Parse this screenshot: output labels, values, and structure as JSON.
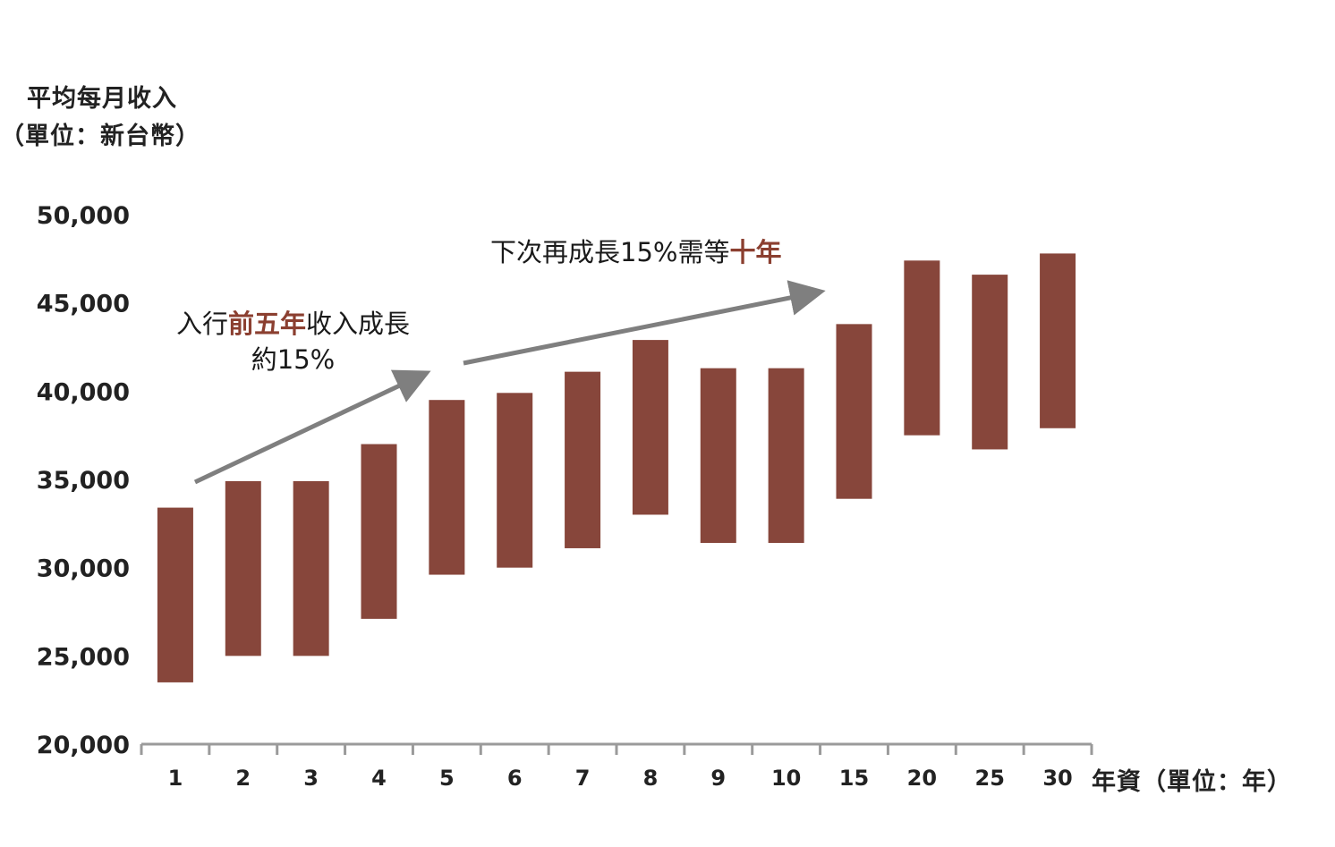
{
  "chart_data": {
    "type": "bar",
    "subtype": "floating-range",
    "categories": [
      "1",
      "2",
      "3",
      "4",
      "5",
      "6",
      "7",
      "8",
      "9",
      "10",
      "15",
      "20",
      "25",
      "30"
    ],
    "series": [
      {
        "low": [
          23500,
          25000,
          25000,
          27100,
          29600,
          30000,
          31100,
          33000,
          31400,
          31400,
          33900,
          37500,
          36700,
          37900
        ],
        "high": [
          33400,
          34900,
          34900,
          37000,
          39500,
          39900,
          41100,
          42900,
          41300,
          41300,
          43800,
          47400,
          46600,
          47800
        ]
      }
    ],
    "ylabel_line1": "平均每月收入",
    "ylabel_line2": "（單位：新台幣）",
    "xlabel": "年資（單位：年）",
    "ylim": [
      20000,
      50000
    ],
    "yticks": [
      "20,000",
      "25,000",
      "30,000",
      "35,000",
      "40,000",
      "45,000",
      "50,000"
    ],
    "grid": false,
    "bar_color": "#87463b",
    "arrow_color": "#7f7f7f",
    "annotations": {
      "a1_pre": "入行",
      "a1_hl": "前五年",
      "a1_post": "收入成長",
      "a1_line2": "約15%",
      "a2_pre": "下次再成長15%需等",
      "a2_hl": "十年",
      "highlight_color": "#8b3f30"
    }
  }
}
